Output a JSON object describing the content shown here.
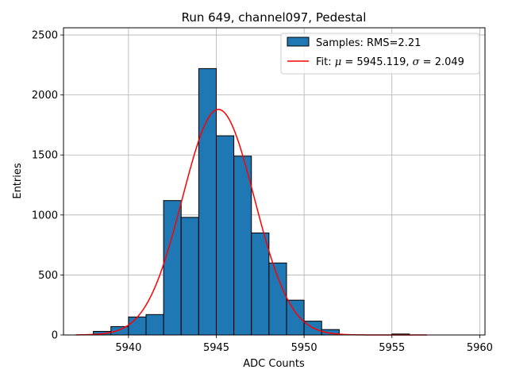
{
  "chart_data": {
    "type": "bar",
    "title": "Run 649, channel097, Pedestal",
    "xlabel": "ADC Counts",
    "ylabel": "Entries",
    "xlim": [
      5936.3,
      5960.3
    ],
    "ylim": [
      0,
      2560
    ],
    "xticks": [
      5940,
      5945,
      5950,
      5955,
      5960
    ],
    "yticks": [
      0,
      500,
      1000,
      1500,
      2000,
      2500
    ],
    "grid": true,
    "legend_position": "top-right",
    "histogram": {
      "name": "Samples: RMS=2.21",
      "color": "#1f77b4",
      "bins": [
        {
          "x0": 5937,
          "x1": 5938,
          "count": 0
        },
        {
          "x0": 5938,
          "x1": 5939,
          "count": 30
        },
        {
          "x0": 5939,
          "x1": 5940,
          "count": 70
        },
        {
          "x0": 5940,
          "x1": 5941,
          "count": 150
        },
        {
          "x0": 5941,
          "x1": 5942,
          "count": 170
        },
        {
          "x0": 5942,
          "x1": 5943,
          "count": 1120
        },
        {
          "x0": 5943,
          "x1": 5944,
          "count": 980
        },
        {
          "x0": 5944,
          "x1": 5945,
          "count": 2220
        },
        {
          "x0": 5945,
          "x1": 5946,
          "count": 1660
        },
        {
          "x0": 5946,
          "x1": 5947,
          "count": 1490
        },
        {
          "x0": 5947,
          "x1": 5948,
          "count": 850
        },
        {
          "x0": 5948,
          "x1": 5949,
          "count": 600
        },
        {
          "x0": 5949,
          "x1": 5950,
          "count": 290
        },
        {
          "x0": 5950,
          "x1": 5951,
          "count": 115
        },
        {
          "x0": 5951,
          "x1": 5952,
          "count": 45
        },
        {
          "x0": 5952,
          "x1": 5953,
          "count": 0
        },
        {
          "x0": 5953,
          "x1": 5954,
          "count": 0
        },
        {
          "x0": 5954,
          "x1": 5955,
          "count": 0
        },
        {
          "x0": 5955,
          "x1": 5956,
          "count": 8
        },
        {
          "x0": 5956,
          "x1": 5957,
          "count": 0
        }
      ]
    },
    "fit": {
      "name": "Fit: μ = 5945.119, σ = 2.049",
      "name_prefix": "Fit: ",
      "mu_symbol": "μ",
      "mu_text": " = 5945.119, ",
      "sigma_symbol": "σ",
      "sigma_text": " = 2.049",
      "color": "#ff0000",
      "mu": 5945.119,
      "sigma": 2.049,
      "amplitude": 1880,
      "x_range": [
        5937,
        5957
      ]
    }
  }
}
